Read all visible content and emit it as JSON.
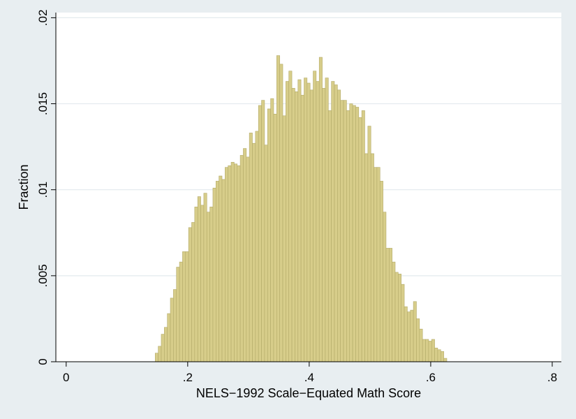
{
  "chart_data": {
    "type": "bar",
    "subtype": "histogram",
    "xlabel": "NELS−1992 Scale−Equated Math Score",
    "ylabel": "Fraction",
    "xlim": [
      -0.017,
      0.815
    ],
    "ylim": [
      0,
      0.0203
    ],
    "x_ticks": [
      0,
      0.2,
      0.4,
      0.6,
      0.8
    ],
    "x_tick_labels": [
      "0",
      ".2",
      ".4",
      ".6",
      ".8"
    ],
    "y_ticks": [
      0,
      0.005,
      0.01,
      0.015,
      0.02
    ],
    "y_tick_labels": [
      "0",
      ".005",
      ".01",
      ".015",
      ".02"
    ],
    "grid": "horizontal",
    "bin_start": 0.1465,
    "bin_width": 0.005,
    "values": [
      0.0005,
      0.0009,
      0.0016,
      0.002,
      0.0028,
      0.0037,
      0.0042,
      0.0055,
      0.0058,
      0.0064,
      0.0064,
      0.0078,
      0.0081,
      0.009,
      0.0096,
      0.0091,
      0.0098,
      0.0087,
      0.009,
      0.0101,
      0.0105,
      0.0108,
      0.0106,
      0.0113,
      0.0114,
      0.0116,
      0.0115,
      0.0114,
      0.012,
      0.0124,
      0.0119,
      0.0133,
      0.0127,
      0.0134,
      0.0149,
      0.0152,
      0.0126,
      0.0147,
      0.0153,
      0.0144,
      0.0178,
      0.0173,
      0.0143,
      0.0163,
      0.0169,
      0.0159,
      0.0157,
      0.0164,
      0.0155,
      0.0165,
      0.0162,
      0.0158,
      0.0169,
      0.0163,
      0.0177,
      0.0159,
      0.0165,
      0.0146,
      0.0163,
      0.0161,
      0.0158,
      0.0152,
      0.0152,
      0.0146,
      0.015,
      0.0149,
      0.0148,
      0.0142,
      0.0146,
      0.0121,
      0.0137,
      0.0121,
      0.0113,
      0.0113,
      0.0105,
      0.0087,
      0.0066,
      0.0066,
      0.0058,
      0.0052,
      0.0051,
      0.0045,
      0.0032,
      0.0029,
      0.003,
      0.0035,
      0.0025,
      0.0019,
      0.0013,
      0.0013,
      0.0012,
      0.0013,
      0.0008,
      0.0007,
      0.0006,
      0.0002
    ]
  }
}
